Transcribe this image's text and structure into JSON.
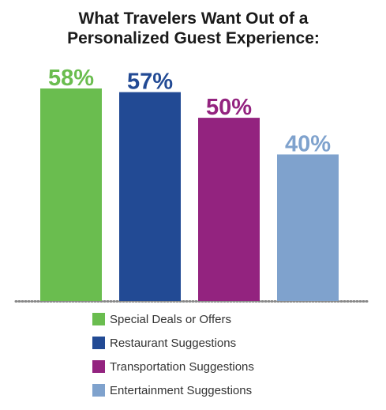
{
  "chart_data": {
    "type": "bar",
    "title": [
      "What Travelers Want Out of a",
      "Personalized Guest Experience:"
    ],
    "categories": [
      "Special Deals or Offers",
      "Restaurant Suggestions",
      "Transportation Suggestions",
      "Entertainment Suggestions"
    ],
    "values": [
      58,
      57,
      50,
      40
    ],
    "value_labels": [
      "58%",
      "57%",
      "50%",
      "40%"
    ],
    "colors": [
      "#6abd4f",
      "#224a94",
      "#93237f",
      "#7fa2cd"
    ],
    "legend": "bottom"
  }
}
